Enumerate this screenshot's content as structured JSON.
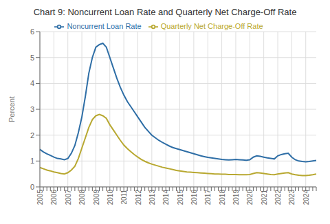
{
  "chart_data": {
    "type": "line",
    "title": "Chart 9: Noncurrent Loan Rate and Quarterly Net Charge-Off Rate",
    "y_label": "Percent",
    "categories": [
      "2005",
      null,
      null,
      null,
      "2006",
      null,
      null,
      null,
      "2007",
      null,
      null,
      null,
      "2008",
      null,
      null,
      null,
      "2009",
      null,
      null,
      null,
      "2010",
      null,
      null,
      null,
      "2011",
      null,
      null,
      null,
      "2012",
      null,
      null,
      null,
      "2013",
      null,
      null,
      null,
      "2014",
      null,
      null,
      null,
      "2015",
      null,
      null,
      null,
      "2016",
      null,
      null,
      null,
      "2017",
      null,
      null,
      null,
      "2018",
      null,
      null,
      null,
      "2019",
      null,
      null,
      null,
      "2020",
      null,
      null,
      null,
      "2021",
      null,
      null,
      null,
      "2022",
      null,
      null,
      null,
      "2023",
      null,
      null,
      null,
      "2024",
      null,
      null,
      null
    ],
    "series": [
      {
        "name": "Noncurrent Loan Rate",
        "color": "#2e6ea6",
        "values": [
          1.45,
          1.35,
          1.28,
          1.22,
          1.15,
          1.1,
          1.08,
          1.05,
          1.1,
          1.3,
          1.6,
          2.1,
          2.7,
          3.5,
          4.4,
          5.0,
          5.4,
          5.5,
          5.55,
          5.4,
          5.0,
          4.6,
          4.2,
          3.85,
          3.55,
          3.3,
          3.1,
          2.9,
          2.7,
          2.5,
          2.3,
          2.15,
          2.0,
          1.9,
          1.8,
          1.72,
          1.65,
          1.58,
          1.52,
          1.48,
          1.44,
          1.4,
          1.36,
          1.32,
          1.28,
          1.24,
          1.2,
          1.17,
          1.14,
          1.12,
          1.1,
          1.08,
          1.06,
          1.05,
          1.04,
          1.05,
          1.06,
          1.05,
          1.04,
          1.03,
          1.05,
          1.15,
          1.2,
          1.18,
          1.15,
          1.12,
          1.1,
          1.08,
          1.2,
          1.25,
          1.28,
          1.3,
          1.15,
          1.05,
          1.0,
          0.98,
          0.97,
          0.98,
          1.0,
          1.02
        ]
      },
      {
        "name": "Quarterly Net Charge-Off Rate",
        "color": "#b8a830",
        "values": [
          0.75,
          0.7,
          0.65,
          0.62,
          0.58,
          0.55,
          0.52,
          0.5,
          0.55,
          0.65,
          0.8,
          1.1,
          1.5,
          1.9,
          2.3,
          2.6,
          2.75,
          2.8,
          2.75,
          2.65,
          2.4,
          2.2,
          2.0,
          1.8,
          1.62,
          1.48,
          1.36,
          1.25,
          1.15,
          1.06,
          0.99,
          0.93,
          0.88,
          0.84,
          0.8,
          0.76,
          0.73,
          0.7,
          0.67,
          0.64,
          0.62,
          0.6,
          0.58,
          0.57,
          0.56,
          0.55,
          0.54,
          0.53,
          0.52,
          0.51,
          0.5,
          0.5,
          0.49,
          0.49,
          0.48,
          0.48,
          0.48,
          0.47,
          0.47,
          0.47,
          0.48,
          0.52,
          0.55,
          0.54,
          0.52,
          0.5,
          0.48,
          0.47,
          0.5,
          0.52,
          0.54,
          0.55,
          0.5,
          0.47,
          0.45,
          0.44,
          0.44,
          0.45,
          0.47,
          0.5
        ]
      }
    ],
    "ylim": [
      0,
      6.0
    ],
    "yticks": [
      0,
      1,
      2,
      3,
      4,
      5,
      6
    ],
    "grid": true,
    "legend": "top"
  }
}
